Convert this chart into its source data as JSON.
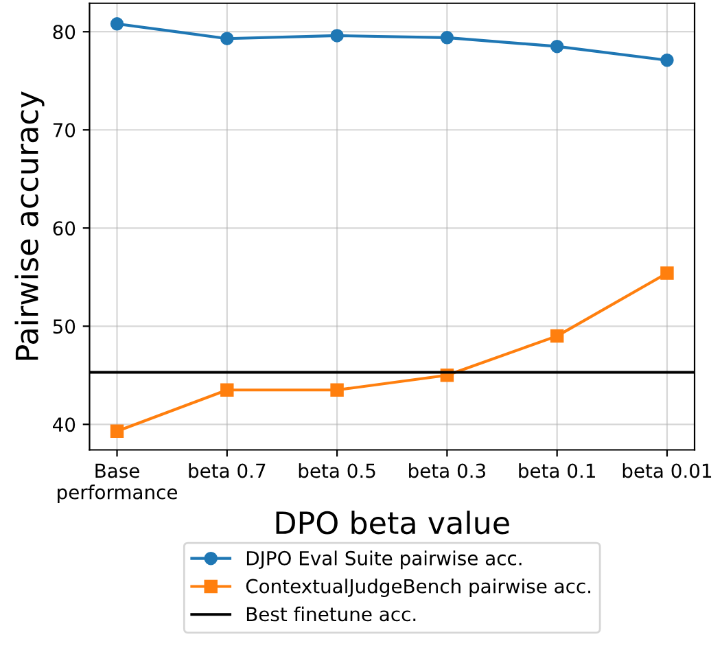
{
  "chart_data": {
    "type": "line",
    "xlabel": "DPO beta value",
    "ylabel": "Pairwise accuracy",
    "categories": [
      "Base\nperformance",
      "beta 0.7",
      "beta 0.5",
      "beta 0.3",
      "beta 0.1",
      "beta 0.01"
    ],
    "series": [
      {
        "name": "DJPO Eval Suite pairwise acc.",
        "color": "#1f77b4",
        "marker": "circle",
        "values": [
          80.8,
          79.3,
          79.6,
          79.4,
          78.5,
          77.1
        ]
      },
      {
        "name": "ContextualJudgeBench pairwise acc.",
        "color": "#ff7f0e",
        "marker": "square",
        "values": [
          39.3,
          43.5,
          43.5,
          45.0,
          49.0,
          55.4
        ]
      }
    ],
    "ref_lines": [
      {
        "axis": "y",
        "value": 45.3,
        "label": "Best finetune acc.",
        "color": "#000000",
        "line_style": "solid"
      }
    ],
    "ylim": [
      37.4,
      82.9
    ],
    "yticks": [
      40,
      50,
      60,
      70,
      80
    ],
    "grid": true,
    "legend": "bottom",
    "line_style": "solid"
  }
}
